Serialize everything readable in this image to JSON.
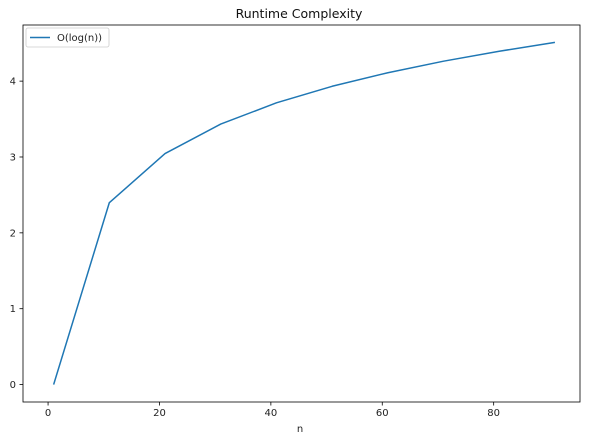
{
  "chart_data": {
    "type": "line",
    "title": "Runtime Complexity",
    "xlabel": "n",
    "ylabel": "",
    "xlim": [
      -4.5,
      95.5
    ],
    "ylim": [
      -0.23,
      4.74
    ],
    "xticks": [
      0,
      20,
      40,
      60,
      80
    ],
    "yticks": [
      0,
      1,
      2,
      3,
      4
    ],
    "grid": false,
    "legend": "upper-left",
    "series": [
      {
        "name": "O(log(n))",
        "color": "#1f77b4",
        "x": [
          1,
          11,
          21,
          31,
          41,
          51,
          61,
          71,
          81,
          91
        ],
        "y": [
          0,
          2.398,
          3.045,
          3.434,
          3.714,
          3.932,
          4.111,
          4.263,
          4.394,
          4.511
        ]
      }
    ]
  }
}
